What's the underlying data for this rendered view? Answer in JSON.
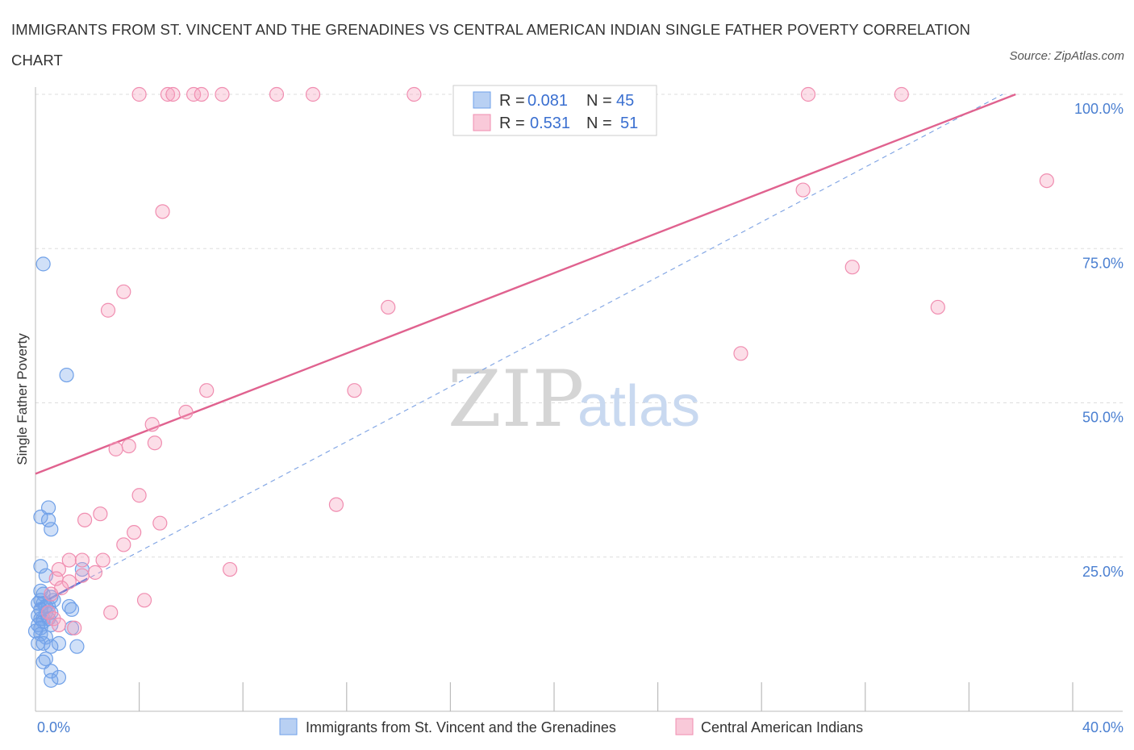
{
  "title": "IMMIGRANTS FROM ST. VINCENT AND THE GRENADINES VS CENTRAL AMERICAN INDIAN SINGLE FATHER POVERTY CORRELATION CHART",
  "source": "Source: ZipAtlas.com",
  "watermark": {
    "zip": "ZIP",
    "atlas": "atlas"
  },
  "legend": {
    "rows": [
      {
        "r_label": "R =",
        "r_value": "0.081",
        "n_label": "N =",
        "n_value": "45"
      },
      {
        "r_label": "R =",
        "r_value": "0.531",
        "n_label": "N =",
        "n_value": "51"
      }
    ]
  },
  "chart_data": {
    "type": "scatter",
    "title": "IMMIGRANTS FROM ST. VINCENT AND THE GRENADINES VS CENTRAL AMERICAN INDIAN SINGLE FATHER POVERTY CORRELATION CHART",
    "xlabel": "",
    "ylabel": "Single Father Poverty",
    "xlim": [
      0,
      40
    ],
    "ylim": [
      0,
      100
    ],
    "x_tick_labels": [
      "0.0%",
      "40.0%"
    ],
    "y_tick_labels": [
      "25.0%",
      "50.0%",
      "75.0%",
      "100.0%"
    ],
    "y_ticks": [
      25,
      50,
      75,
      100
    ],
    "grid": true,
    "colors": {
      "blue": "#6fa0e8",
      "pink": "#f08db0",
      "blue_line": "#3a63d6",
      "pink_line": "#e0628f"
    },
    "series": [
      {
        "name": "Immigrants from St. Vincent and the Grenadines",
        "color": "#6fa0e8",
        "points": [
          [
            0.3,
            72.5
          ],
          [
            1.2,
            54.5
          ],
          [
            0.5,
            33
          ],
          [
            0.2,
            31.5
          ],
          [
            0.5,
            31
          ],
          [
            0.6,
            29.5
          ],
          [
            0.2,
            23.5
          ],
          [
            1.8,
            23
          ],
          [
            0.4,
            22
          ],
          [
            0.3,
            19
          ],
          [
            0.6,
            18.5
          ],
          [
            0.2,
            18
          ],
          [
            0.7,
            18
          ],
          [
            0.3,
            17.5
          ],
          [
            0.1,
            17.5
          ],
          [
            0.5,
            17
          ],
          [
            1.3,
            17
          ],
          [
            1.4,
            16.5
          ],
          [
            0.4,
            16
          ],
          [
            0.6,
            16
          ],
          [
            0.1,
            15.5
          ],
          [
            0.2,
            15
          ],
          [
            0.3,
            15
          ],
          [
            0.5,
            15
          ],
          [
            0.3,
            14.5
          ],
          [
            0.6,
            14
          ],
          [
            0.1,
            14
          ],
          [
            0.2,
            13.5
          ],
          [
            1.4,
            13.5
          ],
          [
            0.0,
            13
          ],
          [
            0.2,
            12.5
          ],
          [
            0.4,
            12
          ],
          [
            0.1,
            11
          ],
          [
            0.3,
            11
          ],
          [
            0.9,
            11
          ],
          [
            0.6,
            10.5
          ],
          [
            1.6,
            10.5
          ],
          [
            0.4,
            8.5
          ],
          [
            0.3,
            8
          ],
          [
            0.6,
            6.5
          ],
          [
            0.6,
            5
          ],
          [
            0.9,
            5.5
          ],
          [
            0.2,
            19.5
          ],
          [
            0.4,
            17
          ],
          [
            0.2,
            16.5
          ]
        ]
      },
      {
        "name": "Central American Indians",
        "color": "#f08db0",
        "points": [
          [
            4.0,
            100
          ],
          [
            5.1,
            100
          ],
          [
            5.3,
            100
          ],
          [
            6.1,
            100
          ],
          [
            6.4,
            100
          ],
          [
            7.2,
            100
          ],
          [
            9.3,
            100
          ],
          [
            10.7,
            100
          ],
          [
            14.6,
            100
          ],
          [
            29.8,
            100
          ],
          [
            33.4,
            100
          ],
          [
            4.9,
            81
          ],
          [
            29.6,
            84.5
          ],
          [
            39.0,
            86
          ],
          [
            3.4,
            68
          ],
          [
            2.8,
            65
          ],
          [
            13.6,
            65.5
          ],
          [
            31.5,
            72
          ],
          [
            34.8,
            65.5
          ],
          [
            27.2,
            58
          ],
          [
            6.6,
            52
          ],
          [
            12.3,
            52
          ],
          [
            5.8,
            48.5
          ],
          [
            4.5,
            46.5
          ],
          [
            4.6,
            43.5
          ],
          [
            3.6,
            43
          ],
          [
            3.1,
            42.5
          ],
          [
            4.0,
            35
          ],
          [
            11.6,
            33.5
          ],
          [
            2.5,
            32
          ],
          [
            1.9,
            31
          ],
          [
            4.8,
            30.5
          ],
          [
            3.8,
            29
          ],
          [
            3.4,
            27
          ],
          [
            7.5,
            23
          ],
          [
            1.3,
            24.5
          ],
          [
            1.8,
            24.5
          ],
          [
            2.6,
            24.5
          ],
          [
            0.9,
            23
          ],
          [
            2.3,
            22.5
          ],
          [
            1.8,
            22
          ],
          [
            0.8,
            21.5
          ],
          [
            1.3,
            21
          ],
          [
            1.0,
            20
          ],
          [
            0.6,
            19
          ],
          [
            4.2,
            18
          ],
          [
            2.9,
            16
          ],
          [
            0.7,
            15
          ],
          [
            0.9,
            14
          ],
          [
            1.5,
            13.5
          ],
          [
            0.5,
            16
          ]
        ]
      }
    ],
    "trendlines": [
      {
        "series": "Immigrants from St. Vincent and the Grenadines",
        "style": "solid",
        "x": [
          0,
          2.0
        ],
        "y": [
          17,
          21.5
        ]
      },
      {
        "series": "Immigrants from St. Vincent and the Grenadines",
        "style": "dashed",
        "x": [
          0,
          37.3
        ],
        "y": [
          17,
          100
        ]
      },
      {
        "series": "Central American Indians",
        "style": "solid",
        "x": [
          0,
          37.8
        ],
        "y": [
          38.5,
          100
        ]
      }
    ]
  },
  "bottom_legend": [
    {
      "label": "Immigrants from St. Vincent and the Grenadines",
      "color": "#b8d0f3",
      "border": "#6fa0e8"
    },
    {
      "label": "Central American Indians",
      "color": "#f9c9d9",
      "border": "#f08db0"
    }
  ]
}
